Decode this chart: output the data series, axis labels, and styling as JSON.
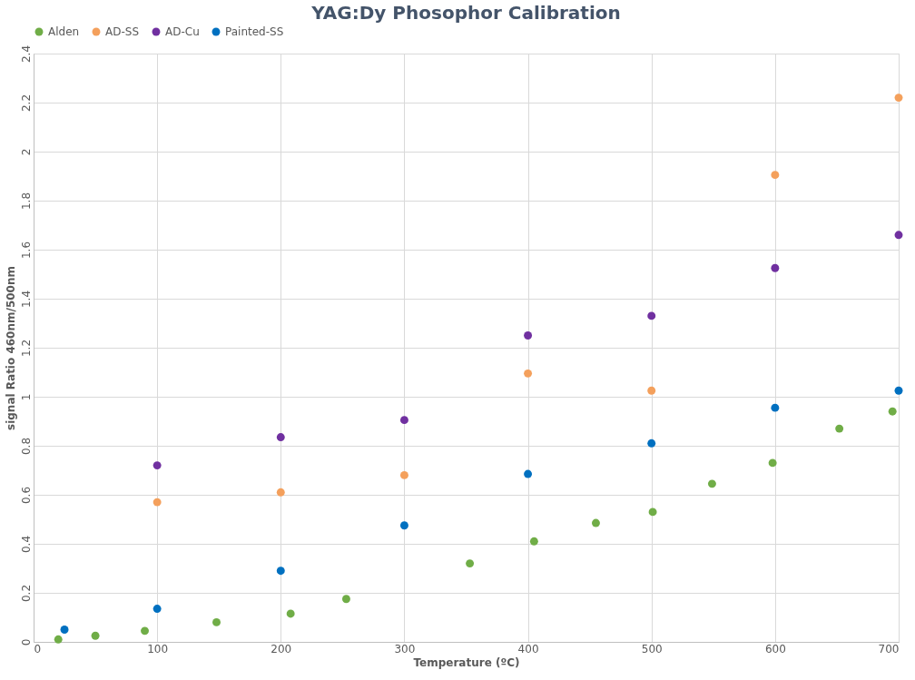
{
  "chart_data": {
    "type": "scatter",
    "title": "YAG:Dy Phosophor Calibration",
    "xlabel": "Temperature (ºC)",
    "ylabel": "signal Ratio 460nm/500nm",
    "xlim": [
      0,
      700
    ],
    "xticks": [
      0,
      100,
      200,
      300,
      400,
      500,
      600,
      700
    ],
    "ylim": [
      0,
      2.4
    ],
    "yticks": [
      0,
      0.2,
      0.4,
      0.6,
      0.8,
      1,
      1.2,
      1.4,
      1.6,
      1.8,
      2,
      2.2,
      2.4
    ],
    "grid": true,
    "legend": "top",
    "marker": "circle",
    "series": [
      {
        "name": "Alden",
        "color": "#70ad47",
        "x": [
          20,
          50,
          90,
          148,
          208,
          253,
          353,
          405,
          455,
          501,
          549,
          598,
          652,
          695
        ],
        "values": [
          0.01,
          0.025,
          0.045,
          0.08,
          0.115,
          0.175,
          0.32,
          0.41,
          0.485,
          0.53,
          0.645,
          0.73,
          0.87,
          0.94
        ]
      },
      {
        "name": "AD-SS",
        "color": "#f4a05c",
        "x": [
          100,
          200,
          300,
          400,
          500,
          600,
          700
        ],
        "values": [
          0.57,
          0.61,
          0.68,
          1.095,
          1.025,
          1.905,
          2.22
        ]
      },
      {
        "name": "AD-Cu",
        "color": "#7030a0",
        "x": [
          100,
          200,
          300,
          400,
          500,
          600,
          700
        ],
        "values": [
          0.72,
          0.835,
          0.905,
          1.25,
          1.33,
          1.525,
          1.66
        ]
      },
      {
        "name": "Painted-SS",
        "color": "#0070c0",
        "x": [
          25,
          100,
          200,
          300,
          400,
          500,
          600,
          700
        ],
        "values": [
          0.05,
          0.135,
          0.29,
          0.475,
          0.685,
          0.81,
          0.955,
          1.025
        ]
      }
    ]
  }
}
